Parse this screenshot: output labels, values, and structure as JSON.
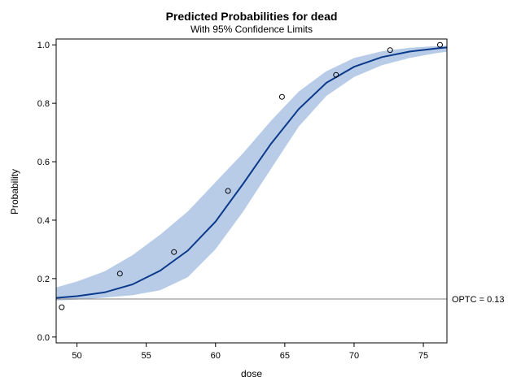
{
  "chart_data": {
    "type": "line",
    "title": "Predicted Probabilities for dead",
    "subtitle": "With 95% Confidence Limits",
    "xlabel": "dose",
    "ylabel": "Probability",
    "xlim": [
      48.5,
      76.7
    ],
    "ylim": [
      -0.02,
      1.02
    ],
    "xticks": [
      50,
      55,
      60,
      65,
      70,
      75
    ],
    "yticks": [
      0.0,
      0.2,
      0.4,
      0.6,
      0.8,
      1.0
    ],
    "yticklabels": [
      "0.0",
      "0.2",
      "0.4",
      "0.6",
      "0.8",
      "1.0"
    ],
    "grid": false,
    "legend": "none",
    "series": [
      {
        "type": "line",
        "color": "#0b3a8b",
        "x": [
          48.5,
          50,
          52,
          54,
          56,
          58,
          60,
          62,
          64,
          66,
          68,
          70,
          72,
          74,
          76,
          76.7
        ],
        "y": [
          0.134,
          0.14,
          0.153,
          0.18,
          0.227,
          0.296,
          0.395,
          0.525,
          0.661,
          0.78,
          0.87,
          0.925,
          0.958,
          0.977,
          0.988,
          0.991
        ]
      },
      {
        "type": "band",
        "color": "#b8cce8",
        "x": [
          48.5,
          50,
          52,
          54,
          56,
          58,
          60,
          62,
          64,
          66,
          68,
          70,
          72,
          74,
          76,
          76.7
        ],
        "lower": [
          0.125,
          0.128,
          0.135,
          0.143,
          0.16,
          0.205,
          0.3,
          0.43,
          0.575,
          0.72,
          0.825,
          0.89,
          0.93,
          0.955,
          0.972,
          0.976
        ],
        "upper": [
          0.17,
          0.19,
          0.225,
          0.28,
          0.35,
          0.43,
          0.53,
          0.63,
          0.74,
          0.84,
          0.91,
          0.955,
          0.978,
          0.99,
          0.996,
          0.997
        ]
      },
      {
        "type": "scatter",
        "color": "#000000",
        "x": [
          48.9,
          53.1,
          57.0,
          60.9,
          64.8,
          68.7,
          72.6,
          76.2
        ],
        "y": [
          0.102,
          0.217,
          0.291,
          0.5,
          0.822,
          0.897,
          0.982,
          1.0
        ]
      }
    ],
    "reference_line": {
      "y": 0.13,
      "label": "OPTC = 0.13",
      "color": "#808080"
    }
  }
}
